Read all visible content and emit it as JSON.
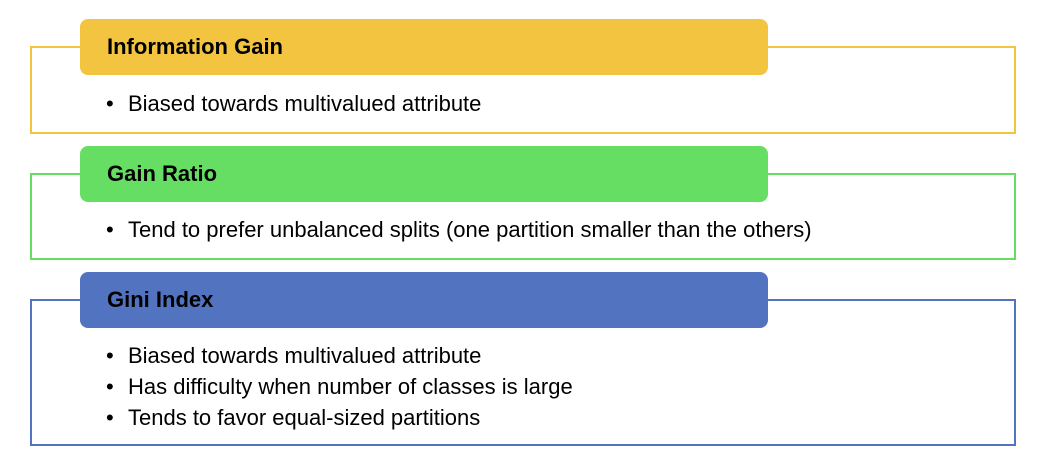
{
  "sections": [
    {
      "title": "Information Gain",
      "color": "#F2C440",
      "bullets": [
        "Biased towards multivalued attribute"
      ]
    },
    {
      "title": "Gain Ratio",
      "color": "#66DE63",
      "bullets": [
        "Tend to prefer unbalanced splits (one partition smaller than the others)"
      ]
    },
    {
      "title": "Gini Index",
      "color": "#5273C0",
      "bullets": [
        "Biased towards multivalued attribute",
        "Has difficulty when number of classes is large",
        "Tends to favor equal-sized partitions"
      ]
    }
  ],
  "bullet_glyph": "•"
}
